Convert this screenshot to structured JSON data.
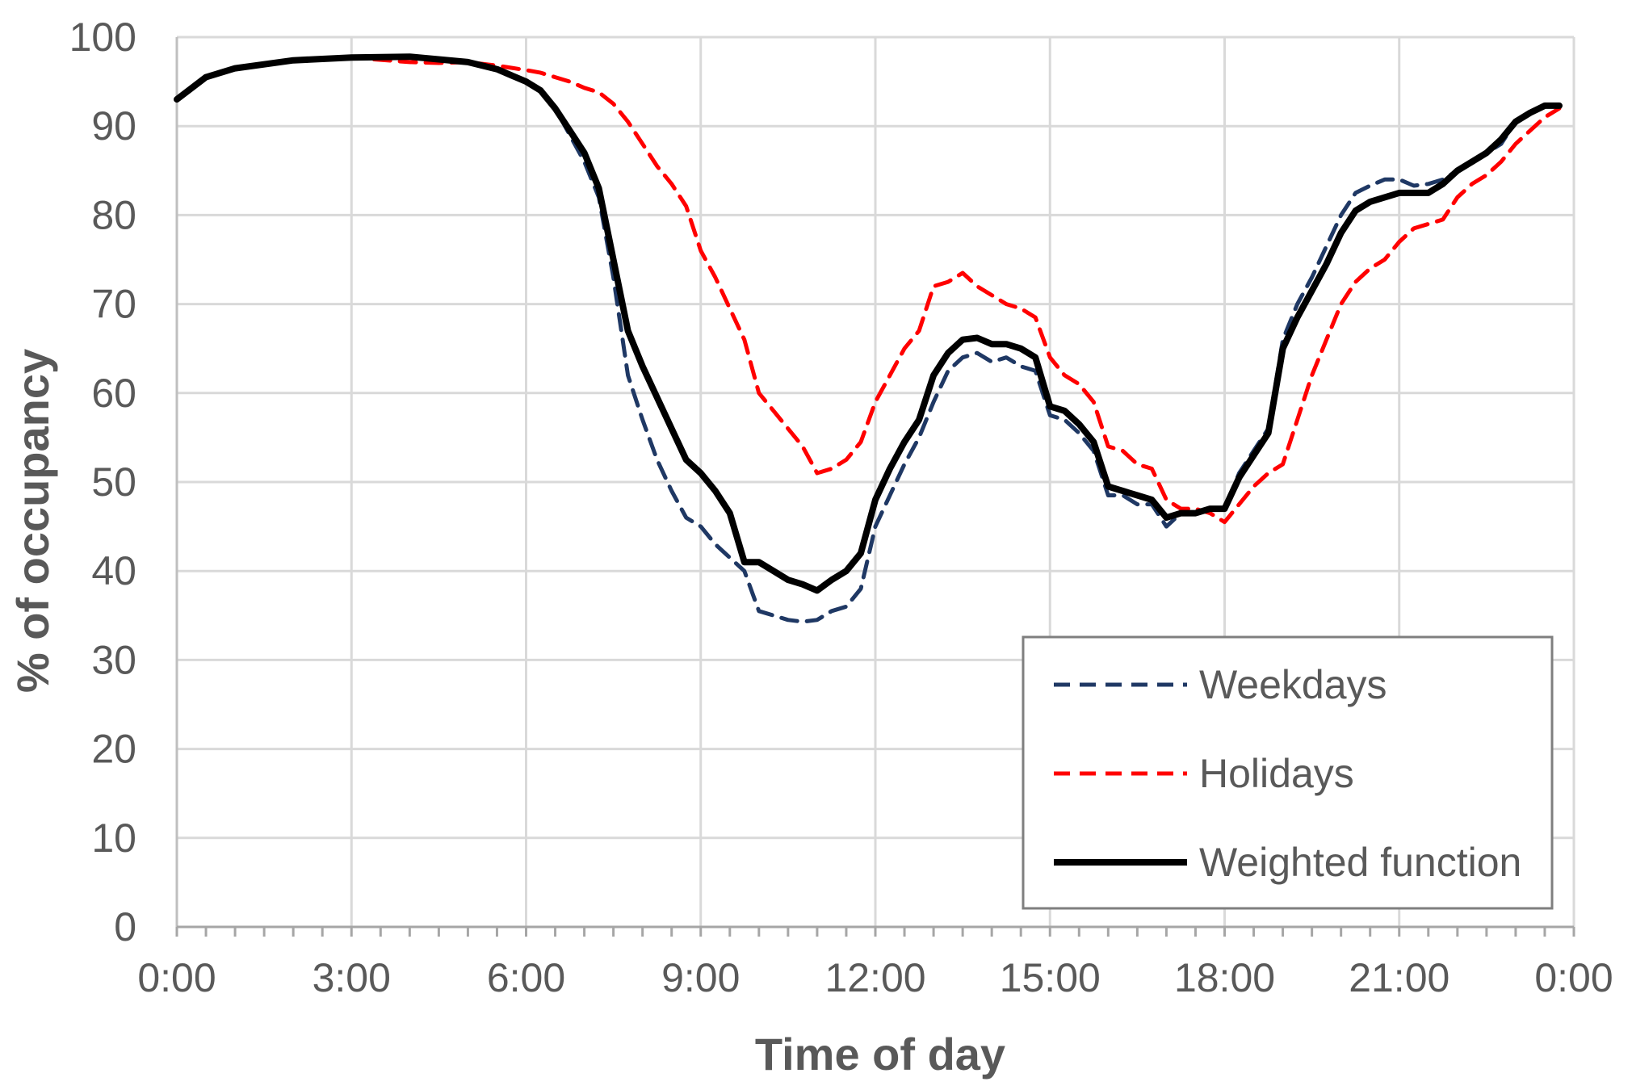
{
  "chart_data": {
    "type": "line",
    "title": "",
    "xlabel": "Time of day",
    "ylabel": "% of occupancy",
    "xlim": [
      0,
      24
    ],
    "ylim": [
      0,
      100
    ],
    "x_ticks": [
      "0:00",
      "3:00",
      "6:00",
      "9:00",
      "12:00",
      "15:00",
      "18:00",
      "21:00",
      "0:00"
    ],
    "y_ticks": [
      "0",
      "10",
      "20",
      "30",
      "40",
      "50",
      "60",
      "70",
      "80",
      "90",
      "100"
    ],
    "grid": true,
    "legend_position": "bottom-right",
    "series": [
      {
        "name": "Weekdays",
        "style": "dashed",
        "color": "#1F3864",
        "x": [
          0,
          0.5,
          1,
          2,
          3,
          4,
          5,
          5.5,
          6,
          6.25,
          6.5,
          6.75,
          7,
          7.25,
          7.5,
          7.75,
          8,
          8.25,
          8.5,
          8.75,
          9,
          9.25,
          9.5,
          9.75,
          10,
          10.25,
          10.5,
          10.75,
          11,
          11.25,
          11.5,
          11.75,
          12,
          12.25,
          12.5,
          12.75,
          13,
          13.25,
          13.5,
          13.75,
          14,
          14.25,
          14.5,
          14.75,
          15,
          15.25,
          15.5,
          15.75,
          16,
          16.25,
          16.5,
          16.75,
          17,
          17.25,
          17.5,
          17.75,
          18,
          18.25,
          18.5,
          18.75,
          19,
          19.25,
          19.5,
          19.75,
          20,
          20.25,
          20.5,
          20.75,
          21,
          21.25,
          21.5,
          21.75,
          22,
          22.25,
          22.5,
          22.75,
          23,
          23.25,
          23.5,
          23.75
        ],
        "values": [
          93,
          95.5,
          96.5,
          97.4,
          97.7,
          97.8,
          97.2,
          96.4,
          95,
          94,
          92,
          89,
          86,
          82,
          73,
          62,
          57,
          52.5,
          49,
          46,
          45,
          43,
          41.5,
          40,
          35.5,
          35,
          34.5,
          34.3,
          34.5,
          35.5,
          36,
          38,
          45,
          48.5,
          52,
          55,
          59,
          62.5,
          64,
          64.5,
          63.5,
          64,
          63,
          62.5,
          57.5,
          57,
          55.5,
          53.5,
          48.5,
          48.5,
          47.5,
          47.5,
          45,
          46.5,
          46.5,
          47,
          47,
          51,
          53.5,
          56,
          66,
          70,
          73,
          76.5,
          80,
          82.5,
          83.3,
          84,
          84,
          83.3,
          83.5,
          84,
          85,
          86,
          87,
          88,
          90.5,
          91.5,
          92.3,
          92.3
        ]
      },
      {
        "name": "Holidays",
        "style": "dashed",
        "color": "#FF0000",
        "x": [
          0,
          0.5,
          1,
          2,
          3,
          4,
          4.5,
          5,
          5.5,
          6,
          6.25,
          6.5,
          6.75,
          7,
          7.25,
          7.5,
          7.75,
          8,
          8.25,
          8.5,
          8.75,
          9,
          9.25,
          9.5,
          9.75,
          10,
          10.25,
          10.5,
          10.75,
          11,
          11.25,
          11.5,
          11.75,
          12,
          12.25,
          12.5,
          12.75,
          13,
          13.25,
          13.5,
          13.75,
          14,
          14.25,
          14.5,
          14.75,
          15,
          15.25,
          15.5,
          15.75,
          16,
          16.25,
          16.5,
          16.75,
          17,
          17.25,
          17.5,
          17.75,
          18,
          18.25,
          18.5,
          18.75,
          19,
          19.25,
          19.5,
          19.75,
          20,
          20.25,
          20.5,
          20.75,
          21,
          21.25,
          21.5,
          21.75,
          22,
          22.25,
          22.5,
          22.75,
          23,
          23.25,
          23.5,
          23.75
        ],
        "values": [
          93,
          95.5,
          96.5,
          97.4,
          97.7,
          97.2,
          97.1,
          97.2,
          96.8,
          96.3,
          96,
          95.5,
          95,
          94.3,
          93.8,
          92.5,
          90.5,
          88,
          85.5,
          83.5,
          81,
          76,
          73,
          69.5,
          66,
          60,
          58,
          56,
          54,
          51,
          51.5,
          52.5,
          54.5,
          59,
          62,
          65,
          67,
          72,
          72.5,
          73.5,
          72,
          71,
          70,
          69.5,
          68.5,
          64,
          62,
          61,
          59,
          54,
          53.5,
          52,
          51.5,
          48,
          47,
          47,
          46.5,
          45.5,
          47.5,
          49.5,
          51,
          52,
          57,
          62,
          66,
          70,
          72.5,
          74,
          75,
          77,
          78.5,
          79,
          79.5,
          82,
          83.5,
          84.5,
          86,
          88,
          89.5,
          91,
          92
        ]
      },
      {
        "name": "Weighted function",
        "style": "solid",
        "color": "#000000",
        "x": [
          0,
          0.5,
          1,
          2,
          3,
          4,
          5,
          5.5,
          6,
          6.25,
          6.5,
          6.75,
          7,
          7.25,
          7.5,
          7.75,
          8,
          8.25,
          8.5,
          8.75,
          9,
          9.25,
          9.5,
          9.75,
          10,
          10.25,
          10.5,
          10.75,
          11,
          11.25,
          11.5,
          11.75,
          12,
          12.25,
          12.5,
          12.75,
          13,
          13.25,
          13.5,
          13.75,
          14,
          14.25,
          14.5,
          14.75,
          15,
          15.25,
          15.5,
          15.75,
          16,
          16.25,
          16.5,
          16.75,
          17,
          17.25,
          17.5,
          17.75,
          18,
          18.25,
          18.5,
          18.75,
          19,
          19.25,
          19.5,
          19.75,
          20,
          20.25,
          20.5,
          20.75,
          21,
          21.25,
          21.5,
          21.75,
          22,
          22.25,
          22.5,
          22.75,
          23,
          23.25,
          23.5,
          23.75
        ],
        "values": [
          93,
          95.5,
          96.5,
          97.4,
          97.7,
          97.8,
          97.2,
          96.4,
          95,
          94,
          92,
          89.5,
          87,
          83,
          75,
          67,
          63,
          59.5,
          56,
          52.5,
          51,
          49,
          46.5,
          41,
          41,
          40,
          39,
          38.5,
          37.8,
          39,
          40,
          42,
          48,
          51.5,
          54.5,
          57,
          62,
          64.5,
          66,
          66.2,
          65.5,
          65.5,
          65,
          64,
          58.5,
          58,
          56.5,
          54.5,
          49.5,
          49,
          48.5,
          48,
          46,
          46.5,
          46.5,
          47,
          47,
          50.5,
          53,
          55.5,
          65,
          68.5,
          71.5,
          74.5,
          78,
          80.5,
          81.5,
          82,
          82.5,
          82.5,
          82.5,
          83.5,
          85,
          86,
          87,
          88.5,
          90.5,
          91.5,
          92.3,
          92.3
        ]
      }
    ]
  }
}
